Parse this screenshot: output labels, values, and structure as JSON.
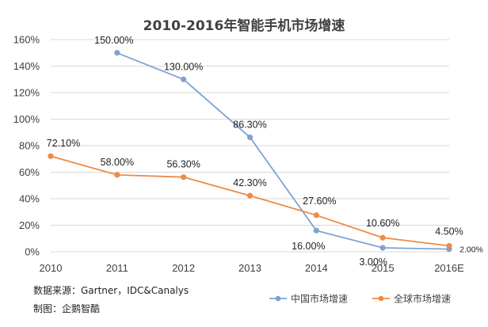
{
  "chart_data": {
    "type": "line",
    "title": "2010-2016年智能手机市场增速",
    "categories": [
      "2010",
      "2011",
      "2012",
      "2013",
      "2014",
      "2015",
      "2016E"
    ],
    "y_ticks": [
      "0%",
      "20%",
      "40%",
      "60%",
      "80%",
      "100%",
      "120%",
      "140%",
      "160%"
    ],
    "ylim": [
      0,
      160
    ],
    "grid": true,
    "legend_position": "bottom-right",
    "series": [
      {
        "name": "中国市场增速",
        "color": "#7EA3D1",
        "values": [
          null,
          150.0,
          130.0,
          86.3,
          16.0,
          3.0,
          2.0
        ],
        "labels": [
          "",
          "150.00%",
          "130.00%",
          "86.30%",
          "16.00%",
          "3.00%",
          "2.00%"
        ]
      },
      {
        "name": "全球市场增速",
        "color": "#ED8B46",
        "values": [
          72.1,
          58.0,
          56.3,
          42.3,
          27.6,
          10.6,
          4.5
        ],
        "labels": [
          "72.10%",
          "58.00%",
          "56.30%",
          "42.30%",
          "27.60%",
          "10.60%",
          "4.50%"
        ]
      }
    ]
  },
  "notes": {
    "source": "数据来源：Gartner，IDC&Canalys",
    "credit": "制图：企鹅智酷"
  }
}
